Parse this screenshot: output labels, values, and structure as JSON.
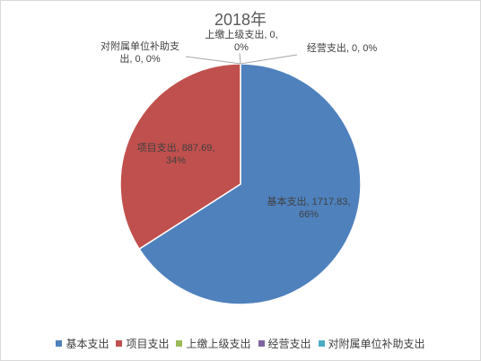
{
  "chart_data": {
    "type": "pie",
    "title": "2018年",
    "categories": [
      "基本支出",
      "项目支出",
      "上缴上级支出",
      "经营支出",
      "对附属单位补助支出"
    ],
    "values": [
      1717.83,
      887.69,
      0,
      0,
      0
    ],
    "percents": [
      "66%",
      "34%",
      "0%",
      "0%",
      "0%"
    ],
    "value_labels": [
      "1717.83",
      "887.69",
      "0",
      "0",
      "0"
    ],
    "colors": [
      "#4f81bd",
      "#c0504d",
      "#9bbb59",
      "#8064a2",
      "#4bacc6"
    ],
    "legend_position": "bottom",
    "data_labels": [
      "基本支出, 1717.83,|66%",
      "项目支出, 887.69,|34%",
      "上缴上级支出, 0,|0%",
      "经营支出, 0, 0%",
      "对附属单位补助支|出, 0, 0%"
    ]
  }
}
